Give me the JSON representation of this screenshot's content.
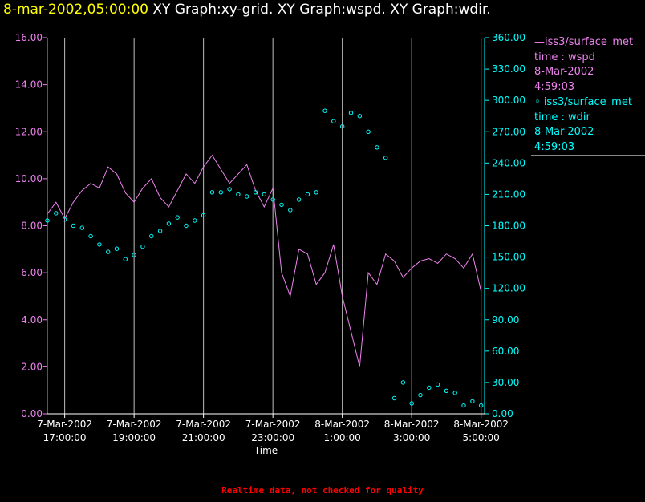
{
  "title": {
    "time": "8-mar-2002,05:00:00",
    "graphs": "XY Graph:xy-grid.  XY Graph:wspd.  XY Graph:wdir."
  },
  "legend": [
    {
      "prefix": "—",
      "name": "iss3/surface_met",
      "var": "time : wspd",
      "date": "8-Mar-2002",
      "time": "4:59:03"
    },
    {
      "prefix": "◦ ",
      "name": "iss3/surface_met",
      "var": "time : wdir",
      "date": "8-Mar-2002",
      "time": "4:59:03"
    }
  ],
  "footer": "Realtime data, not checked for quality",
  "colors": {
    "wspd": "#ee82ee",
    "wdir": "#00ffff",
    "title_time": "#ffff00",
    "footer": "#ff0000",
    "grid": "#c0c0c0"
  },
  "chart_data": {
    "type": "line",
    "xlabel": "Time",
    "ylabel_left": "",
    "ylabel_right": "",
    "xlim": [
      16.5,
      29.1
    ],
    "y_left_lim": [
      0,
      16
    ],
    "y_right_lim": [
      0,
      360
    ],
    "x_ticks": [
      {
        "x": 17,
        "date": "7-Mar-2002",
        "time": "17:00:00"
      },
      {
        "x": 19,
        "date": "7-Mar-2002",
        "time": "19:00:00"
      },
      {
        "x": 21,
        "date": "7-Mar-2002",
        "time": "21:00:00"
      },
      {
        "x": 23,
        "date": "7-Mar-2002",
        "time": "23:00:00"
      },
      {
        "x": 25,
        "date": "8-Mar-2002",
        "time": "1:00:00"
      },
      {
        "x": 27,
        "date": "8-Mar-2002",
        "time": "3:00:00"
      },
      {
        "x": 29,
        "date": "8-Mar-2002",
        "time": "5:00:00"
      }
    ],
    "y_left_ticks": [
      "0.00",
      "2.00",
      "4.00",
      "6.00",
      "8.00",
      "10.00",
      "12.00",
      "14.00",
      "16.00"
    ],
    "y_right_ticks": [
      "0.00",
      "30.00",
      "60.00",
      "90.00",
      "120.00",
      "150.00",
      "180.00",
      "210.00",
      "240.00",
      "270.00",
      "300.00",
      "330.00",
      "360.00"
    ],
    "grid": true,
    "series": [
      {
        "name": "time : wspd",
        "axis": "left",
        "style": "line",
        "x": [
          16.5,
          16.75,
          17.0,
          17.25,
          17.5,
          17.75,
          18.0,
          18.25,
          18.5,
          18.75,
          19.0,
          19.25,
          19.5,
          19.75,
          20.0,
          20.25,
          20.5,
          20.75,
          21.0,
          21.25,
          21.5,
          21.75,
          22.0,
          22.25,
          22.5,
          22.75,
          23.0,
          23.25,
          23.5,
          23.75,
          24.0,
          24.25,
          24.5,
          24.75,
          25.0,
          25.25,
          25.5,
          25.75,
          26.0,
          26.25,
          26.5,
          26.75,
          27.0,
          27.25,
          27.5,
          27.75,
          28.0,
          28.25,
          28.5,
          28.75,
          29.0
        ],
        "y": [
          8.5,
          9.0,
          8.3,
          9.0,
          9.5,
          9.8,
          9.6,
          10.5,
          10.2,
          9.4,
          9.0,
          9.6,
          10.0,
          9.2,
          8.8,
          9.5,
          10.2,
          9.8,
          10.5,
          11.0,
          10.4,
          9.8,
          10.2,
          10.6,
          9.5,
          8.8,
          9.6,
          6.0,
          5.0,
          7.0,
          6.8,
          5.5,
          6.0,
          7.2,
          5.0,
          3.5,
          2.0,
          6.0,
          5.5,
          6.8,
          6.5,
          5.8,
          6.2,
          6.5,
          6.6,
          6.4,
          6.8,
          6.6,
          6.2,
          6.8,
          5.2
        ]
      },
      {
        "name": "time : wdir",
        "axis": "right",
        "style": "points",
        "x": [
          16.5,
          16.75,
          17.0,
          17.25,
          17.5,
          17.75,
          18.0,
          18.25,
          18.5,
          18.75,
          19.0,
          19.25,
          19.5,
          19.75,
          20.0,
          20.25,
          20.5,
          20.75,
          21.0,
          21.25,
          21.5,
          21.75,
          22.0,
          22.25,
          22.5,
          22.75,
          23.0,
          23.25,
          23.5,
          23.75,
          24.0,
          24.25,
          24.5,
          24.75,
          25.0,
          25.25,
          25.5,
          25.75,
          26.0,
          26.25,
          26.5,
          26.75,
          27.0,
          27.25,
          27.5,
          27.75,
          28.0,
          28.25,
          28.5,
          28.75,
          29.0
        ],
        "y": [
          185,
          192,
          186,
          180,
          178,
          170,
          162,
          155,
          158,
          148,
          152,
          160,
          170,
          175,
          182,
          188,
          180,
          185,
          190,
          212,
          212,
          215,
          210,
          208,
          212,
          210,
          205,
          200,
          195,
          205,
          210,
          212,
          290,
          280,
          275,
          288,
          285,
          270,
          255,
          245,
          15,
          30,
          10,
          18,
          25,
          28,
          22,
          20,
          8,
          12,
          8
        ]
      }
    ]
  }
}
